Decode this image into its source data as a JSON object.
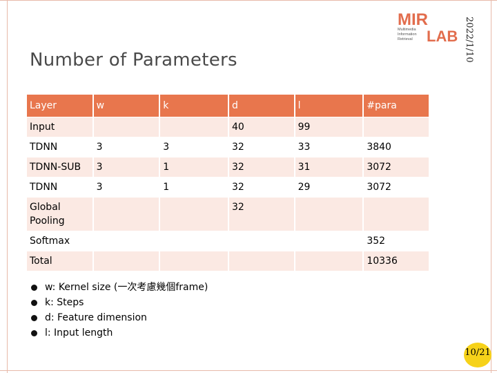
{
  "slide": {
    "title": "Number of Parameters",
    "date": "2022/1/10",
    "page": "10/21"
  },
  "logo": {
    "top_text": "MIR",
    "bottom_text": "LAB",
    "caption_lines": [
      "Multimedia",
      "Information",
      "Retrieval"
    ],
    "accent_color": "#e26d4d"
  },
  "table": {
    "header_color": "#e8764d",
    "stripe_color": "#fbe9e3",
    "headers": [
      "Layer",
      "w",
      "k",
      "d",
      "l",
      "#para"
    ],
    "rows": [
      [
        "Input",
        "",
        "",
        "40",
        "99",
        ""
      ],
      [
        "TDNN",
        "3",
        "3",
        "32",
        "33",
        "3840"
      ],
      [
        "TDNN-SUB",
        "3",
        "1",
        "32",
        "31",
        "3072"
      ],
      [
        "TDNN",
        "3",
        "1",
        "32",
        "29",
        "3072"
      ],
      [
        "Global Pooling",
        "",
        "",
        "32",
        "",
        ""
      ],
      [
        "Softmax",
        "",
        "",
        "",
        "",
        "352"
      ],
      [
        "Total",
        "",
        "",
        "",
        "",
        "10336"
      ]
    ]
  },
  "notes": [
    "w: Kernel size (一次考慮幾個frame)",
    "k: Steps",
    "d: Feature dimension",
    "l: Input length"
  ]
}
